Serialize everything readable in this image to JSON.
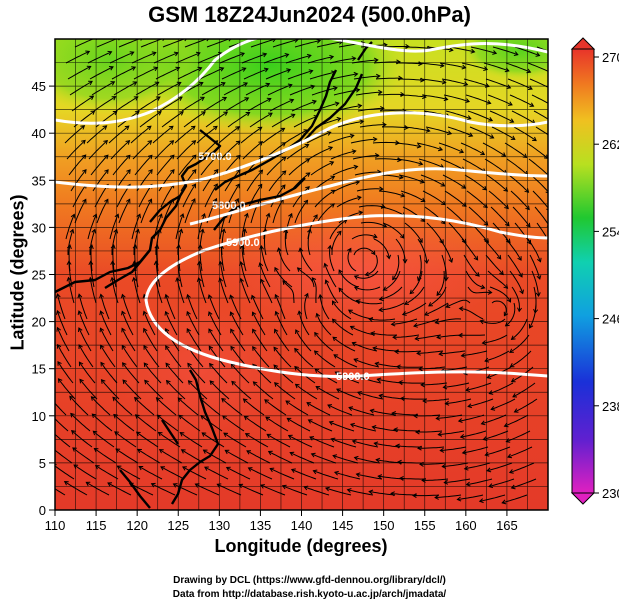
{
  "title": "GSM 18Z24Jun2024 (500.0hPa)",
  "axes": {
    "xlabel": "Longitude (degrees)",
    "ylabel": "Latitude  (degrees)",
    "xticks": [
      "110",
      "115",
      "120",
      "125",
      "130",
      "135",
      "140",
      "145",
      "150",
      "155",
      "160",
      "165"
    ],
    "yticks": [
      "0",
      "5",
      "10",
      "15",
      "20",
      "25",
      "30",
      "35",
      "40",
      "45"
    ],
    "xlim": [
      110,
      170
    ],
    "ylim": [
      0,
      50
    ]
  },
  "colorbar": {
    "labels": [
      "270",
      "262",
      "254",
      "246",
      "238",
      "230"
    ],
    "range": [
      230,
      270
    ]
  },
  "contours": {
    "labels": [
      "5700.0",
      "5800.0",
      "5900.0",
      "5900.0"
    ]
  },
  "credits": {
    "line1": "Drawing by DCL (https://www.gfd-dennou.org/library/dcl/)",
    "line2": "Data from http://database.rish.kyoto-u.ac.jp/arch/jmadata/"
  },
  "colors": {
    "field_red": "#e8342a",
    "field_orange": "#f0801e",
    "field_yellow": "#e8e020",
    "field_green": "#5ad21e",
    "land": "#111111"
  },
  "chart_data": {
    "type": "heatmap",
    "title": "GSM 18Z24Jun2024 (500.0hPa)",
    "xlabel": "Longitude (degrees)",
    "ylabel": "Latitude  (degrees)",
    "xlim": [
      110,
      170
    ],
    "ylim": [
      0,
      50
    ],
    "colorbar_range": [
      230,
      270
    ],
    "contours": [
      {
        "label": "5700.0",
        "lon": 131,
        "lat": 40
      },
      {
        "label": "5800.0",
        "lon": 133,
        "lat": 35
      },
      {
        "label": "5900.0",
        "lon": 134,
        "lat": 30
      },
      {
        "label": "5900.0",
        "lon": 150,
        "lat": 15
      }
    ]
  }
}
